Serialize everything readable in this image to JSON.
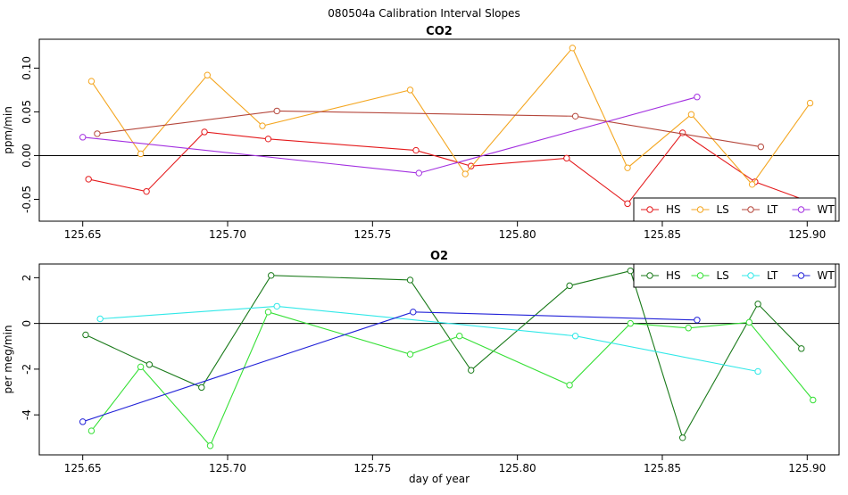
{
  "figure": {
    "title": "080504a   Calibration Interval Slopes"
  },
  "chart_data": [
    {
      "type": "line",
      "title": "CO2",
      "xlabel": "",
      "ylabel": "ppm/min",
      "xlim": [
        125.635,
        125.911
      ],
      "ylim": [
        -0.075,
        0.133
      ],
      "xticks": [
        125.65,
        125.7,
        125.75,
        125.8,
        125.85,
        125.9
      ],
      "xtick_labels": [
        "125.65",
        "125.70",
        "125.75",
        "125.80",
        "125.85",
        "125.90"
      ],
      "yticks": [
        -0.05,
        0.0,
        0.05,
        0.1
      ],
      "ytick_labels": [
        "-0.05",
        "0.00",
        "0.05",
        "0.10"
      ],
      "reference_line": 0,
      "legend_position": "bottom-right",
      "series": [
        {
          "name": "HS",
          "color": "#e41a1c",
          "x": [
            125.652,
            125.672,
            125.692,
            125.714,
            125.765,
            125.784,
            125.817,
            125.838,
            125.857,
            125.882,
            125.905
          ],
          "y": [
            -0.027,
            -0.041,
            0.027,
            0.019,
            0.006,
            -0.012,
            -0.003,
            -0.055,
            0.026,
            -0.03,
            -0.058
          ]
        },
        {
          "name": "LS",
          "color": "#f4a620",
          "x": [
            125.653,
            125.67,
            125.693,
            125.712,
            125.763,
            125.782,
            125.819,
            125.838,
            125.86,
            125.881,
            125.901
          ],
          "y": [
            0.085,
            0.002,
            0.092,
            0.034,
            0.075,
            -0.021,
            0.123,
            -0.014,
            0.047,
            -0.033,
            0.06
          ]
        },
        {
          "name": "LT",
          "color": "#b5473c",
          "x": [
            125.655,
            125.717,
            125.82,
            125.884
          ],
          "y": [
            0.025,
            0.051,
            0.045,
            0.01
          ]
        },
        {
          "name": "WT",
          "color": "#a330e0",
          "x": [
            125.65,
            125.766,
            125.862
          ],
          "y": [
            0.021,
            -0.02,
            0.067
          ]
        }
      ]
    },
    {
      "type": "line",
      "title": "O2",
      "xlabel": "day of year",
      "ylabel": "per meg/min",
      "xlim": [
        125.635,
        125.911
      ],
      "ylim": [
        -5.75,
        2.6
      ],
      "xticks": [
        125.65,
        125.7,
        125.75,
        125.8,
        125.85,
        125.9
      ],
      "xtick_labels": [
        "125.65",
        "125.70",
        "125.75",
        "125.80",
        "125.85",
        "125.90"
      ],
      "yticks": [
        -4,
        -2,
        0,
        2
      ],
      "ytick_labels": [
        "-4",
        "-2",
        "0",
        "2"
      ],
      "reference_line": 0,
      "legend_position": "top-right",
      "series": [
        {
          "name": "HS",
          "color": "#1a7a1a",
          "x": [
            125.651,
            125.673,
            125.691,
            125.715,
            125.763,
            125.784,
            125.818,
            125.839,
            125.857,
            125.883,
            125.898
          ],
          "y": [
            -0.5,
            -1.8,
            -2.8,
            2.1,
            1.9,
            -2.05,
            1.65,
            2.3,
            -5.0,
            0.85,
            -1.1
          ]
        },
        {
          "name": "LS",
          "color": "#36e036",
          "x": [
            125.653,
            125.67,
            125.694,
            125.714,
            125.763,
            125.78,
            125.818,
            125.839,
            125.859,
            125.88,
            125.902
          ],
          "y": [
            -4.7,
            -1.9,
            -5.35,
            0.5,
            -1.35,
            -0.55,
            -2.7,
            0.0,
            -0.2,
            0.05,
            -3.35
          ]
        },
        {
          "name": "LT",
          "color": "#30e8e8",
          "x": [
            125.656,
            125.717,
            125.82,
            125.883
          ],
          "y": [
            0.2,
            0.75,
            -0.55,
            -2.1
          ]
        },
        {
          "name": "WT",
          "color": "#2222d8",
          "x": [
            125.65,
            125.764,
            125.862
          ],
          "y": [
            -4.3,
            0.5,
            0.15
          ]
        }
      ]
    }
  ]
}
